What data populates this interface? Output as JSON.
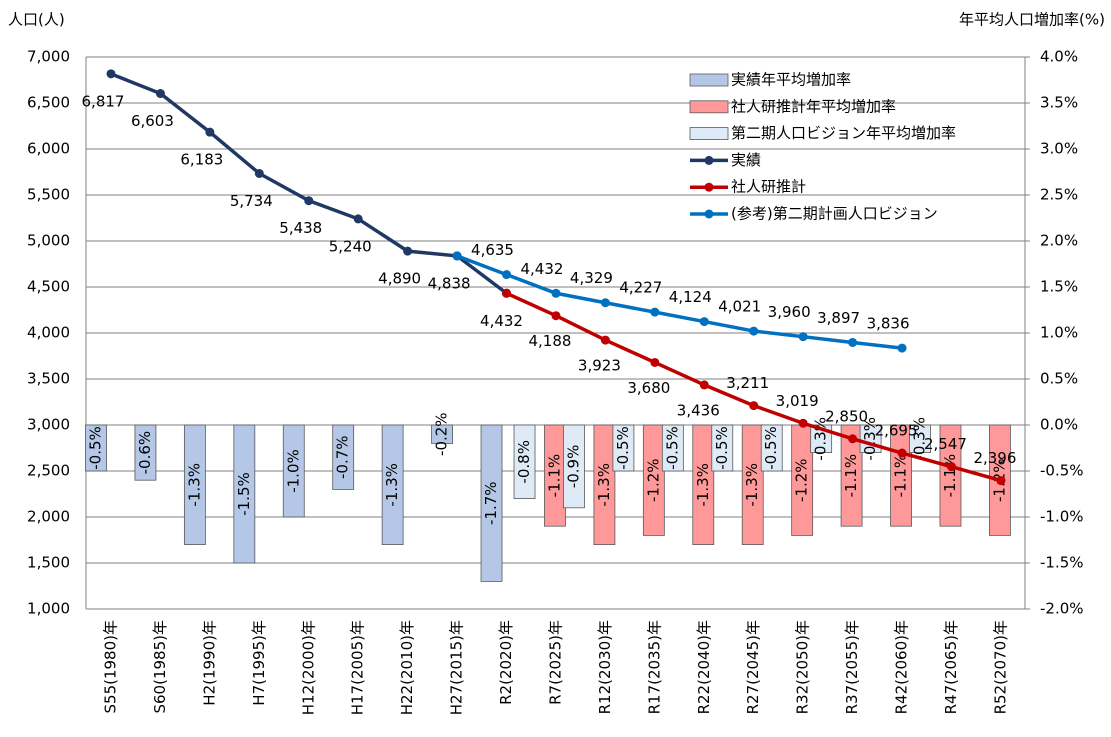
{
  "chart_data": {
    "type": "combo",
    "ylabel": "人口(人)",
    "y2label": "年平均人口増加率(%)",
    "categories": [
      "S55(1980)年",
      "S60(1985)年",
      "H2(1990)年",
      "H7(1995)年",
      "H12(2000)年",
      "H17(2005)年",
      "H22(2010)年",
      "H27(2015)年",
      "R2(2020)年",
      "R7(2025)年",
      "R12(2030)年",
      "R17(2035)年",
      "R22(2040)年",
      "R27(2045)年",
      "R32(2050)年",
      "R37(2055)年",
      "R42(2060)年",
      "R47(2065)年",
      "R52(2070)年"
    ],
    "ylim": [
      1000,
      7000
    ],
    "yticks": [
      {
        "value": 1000,
        "label": "1,000"
      },
      {
        "value": 1500,
        "label": "1,500"
      },
      {
        "value": 2000,
        "label": "2,000"
      },
      {
        "value": 2500,
        "label": "2,500"
      },
      {
        "value": 3000,
        "label": "3,000"
      },
      {
        "value": 3500,
        "label": "3,500"
      },
      {
        "value": 4000,
        "label": "4,000"
      },
      {
        "value": 4500,
        "label": "4,500"
      },
      {
        "value": 5000,
        "label": "5,000"
      },
      {
        "value": 5500,
        "label": "5,500"
      },
      {
        "value": 6000,
        "label": "6,000"
      },
      {
        "value": 6500,
        "label": "6,500"
      },
      {
        "value": 7000,
        "label": "7,000"
      }
    ],
    "y2lim": [
      -2,
      4
    ],
    "y2ticks": [
      {
        "value": -2,
        "label": "-2.0%"
      },
      {
        "value": -1.5,
        "label": "-1.5%"
      },
      {
        "value": -1,
        "label": "-1.0%"
      },
      {
        "value": -0.5,
        "label": "-0.5%"
      },
      {
        "value": 0,
        "label": "0.0%"
      },
      {
        "value": 0.5,
        "label": "0.5%"
      },
      {
        "value": 1,
        "label": "1.0%"
      },
      {
        "value": 1.5,
        "label": "1.5%"
      },
      {
        "value": 2,
        "label": "2.0%"
      },
      {
        "value": 2.5,
        "label": "2.5%"
      },
      {
        "value": 3,
        "label": "3.0%"
      },
      {
        "value": 3.5,
        "label": "3.5%"
      },
      {
        "value": 4,
        "label": "4.0%"
      }
    ],
    "grid": true,
    "series": [
      {
        "name": "実績年平均増加率",
        "type": "bar",
        "axis": "y2",
        "color": "#b4c7e7",
        "label_color": "#1f3864",
        "values": [
          -0.5,
          -0.6,
          -1.3,
          -1.5,
          -1.0,
          -0.7,
          -1.3,
          -0.2,
          -1.7,
          null,
          null,
          null,
          null,
          null,
          null,
          null,
          null,
          null,
          null
        ],
        "value_labels": [
          "-0.5%",
          "-0.6%",
          "-1.3%",
          "-1.5%",
          "-1.0%",
          "-0.7%",
          "-1.3%",
          "-0.2%",
          "-1.7%",
          null,
          null,
          null,
          null,
          null,
          null,
          null,
          null,
          null,
          null
        ]
      },
      {
        "name": "社人研推計年平均増加率",
        "type": "bar",
        "axis": "y2",
        "color": "#ff9999",
        "label_color": "#c00000",
        "values": [
          null,
          null,
          null,
          null,
          null,
          null,
          null,
          null,
          null,
          -1.1,
          -1.3,
          -1.2,
          -1.3,
          -1.3,
          -1.2,
          -1.1,
          -1.1,
          -1.1,
          -1.2
        ],
        "value_labels": [
          null,
          null,
          null,
          null,
          null,
          null,
          null,
          null,
          null,
          "-1.1%",
          "-1.3%",
          "-1.2%",
          "-1.3%",
          "-1.3%",
          "-1.2%",
          "-1.1%",
          "-1.1%",
          "-1.1%",
          "-1.2%"
        ]
      },
      {
        "name": "第二期人口ビジョン年平均増加率",
        "type": "bar",
        "axis": "y2",
        "color": "#deebf7",
        "label_color": "#0070c0",
        "values": [
          null,
          null,
          null,
          null,
          null,
          null,
          null,
          null,
          -0.8,
          -0.9,
          -0.5,
          -0.5,
          -0.5,
          -0.5,
          -0.3,
          -0.3,
          -0.3,
          null,
          null
        ],
        "value_labels": [
          null,
          null,
          null,
          null,
          null,
          null,
          null,
          null,
          "-0.8%",
          "-0.9%",
          "-0.5%",
          "-0.5%",
          "-0.5%",
          "-0.5%",
          "-0.3%",
          "-0.3%",
          "-0.3%",
          null,
          null
        ]
      },
      {
        "name": "実績",
        "type": "line",
        "color": "#1f3864",
        "values": [
          6817,
          6603,
          6183,
          5734,
          5438,
          5240,
          4890,
          4838,
          4432,
          null,
          null,
          null,
          null,
          null,
          null,
          null,
          null,
          null,
          null
        ],
        "value_labels": [
          "6,817",
          "6,603",
          "6,183",
          "5,734",
          "5,438",
          "5,240",
          "4,890",
          "4,838",
          null,
          null,
          null,
          null,
          null,
          null,
          null,
          null,
          null,
          null,
          null
        ]
      },
      {
        "name": "社人研推計",
        "type": "line",
        "color": "#c00000",
        "values": [
          null,
          null,
          null,
          null,
          null,
          null,
          null,
          null,
          4432,
          4188,
          3923,
          3680,
          3436,
          3211,
          3019,
          2850,
          2695,
          2547,
          2396
        ],
        "value_labels": [
          null,
          null,
          null,
          null,
          null,
          null,
          null,
          null,
          "4,432",
          "4,188",
          "3,923",
          "3,680",
          "3,436",
          "3,211",
          "3,019",
          "2,850",
          "2,695",
          "2,547",
          "2,396"
        ]
      },
      {
        "name": "(参考)第二期計画人口ビジョン",
        "type": "line",
        "color": "#0070c0",
        "values": [
          null,
          null,
          null,
          null,
          null,
          null,
          null,
          4838,
          4635,
          4432,
          4329,
          4227,
          4124,
          4021,
          3960,
          3897,
          3836,
          null,
          null
        ],
        "value_labels": [
          null,
          null,
          null,
          null,
          null,
          null,
          null,
          null,
          "4,635",
          "4,432",
          "4,329",
          "4,227",
          "4,124",
          "4,021",
          "3,960",
          "3,897",
          "3,836",
          null,
          null
        ]
      }
    ]
  }
}
